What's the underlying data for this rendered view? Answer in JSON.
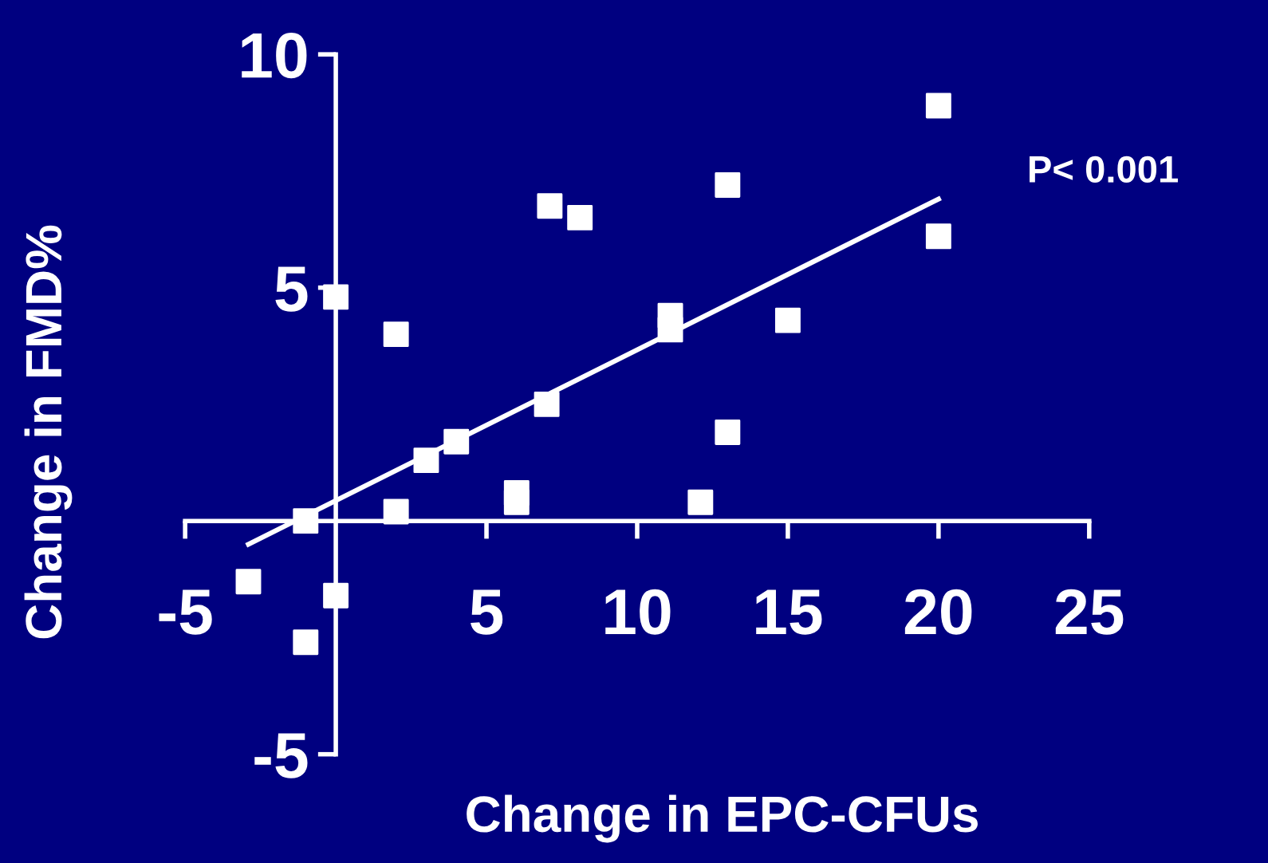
{
  "chart_data": {
    "type": "scatter",
    "xlabel": "Change in EPC-CFUs",
    "ylabel": "Change in FMD%",
    "annotations": [
      "P< 0.001"
    ],
    "series": [
      {
        "color": "#ffffff",
        "marker": "square",
        "x": [
          -2.9,
          -1.0,
          -1.0,
          0,
          0,
          2.0,
          2.0,
          3.0,
          4.0,
          6.0,
          6.0,
          7.0,
          7.1,
          8.1,
          11.1,
          11.1,
          12.1,
          13.0,
          13.0,
          15.0,
          20.0,
          20.0
        ],
        "values": [
          -1.3,
          0.0,
          -2.6,
          4.8,
          -1.6,
          4.0,
          0.2,
          1.3,
          1.7,
          0.6,
          0.4,
          2.5,
          6.75,
          6.5,
          4.4,
          4.1,
          0.4,
          1.9,
          7.2,
          4.3,
          8.9,
          6.1
        ]
      },
      {
        "type": "line",
        "color": "#ffffff",
        "x": [
          -2.9,
          20.0
        ],
        "values": [
          -0.5,
          6.9
        ]
      }
    ],
    "xlim": [
      -5,
      25
    ],
    "ylim": [
      -5,
      10
    ],
    "xticks": [
      -5,
      5,
      10,
      15,
      20,
      25
    ],
    "yticks": [
      -5,
      5,
      10
    ],
    "grid": false,
    "legend": false
  }
}
